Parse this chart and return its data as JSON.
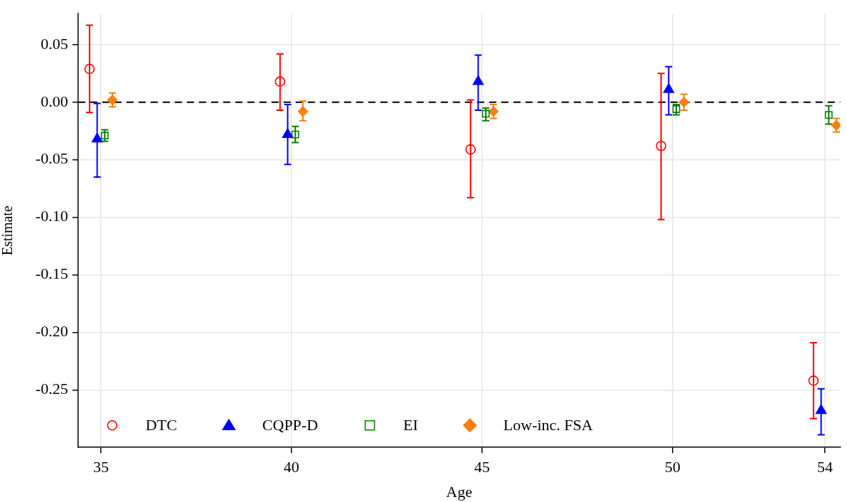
{
  "chart_data": {
    "type": "scatter",
    "xlabel": "Age",
    "ylabel": "Estimate",
    "xlim": [
      34.4,
      54.4
    ],
    "xticks": [
      35,
      40,
      45,
      50,
      54
    ],
    "ylim": [
      -0.3,
      0.077
    ],
    "yticks": [
      {
        "value": -0.25,
        "label": "-0.25"
      },
      {
        "value": -0.2,
        "label": "-0.20"
      },
      {
        "value": -0.15,
        "label": "-0.15"
      },
      {
        "value": -0.1,
        "label": "-0.10"
      },
      {
        "value": -0.05,
        "label": "-0.05"
      },
      {
        "value": 0,
        "label": "0.00"
      },
      {
        "value": 0.05,
        "label": "0.05"
      }
    ],
    "grid": true,
    "legend": "bottom left",
    "ref_lines": [
      {
        "axis": "y",
        "value": 0,
        "color": "#000000",
        "line_style": "dashed"
      }
    ],
    "series": [
      {
        "name": "DTC",
        "color": "#ff0000",
        "marker": "circle",
        "x": [
          34.7,
          39.7,
          44.7,
          49.7,
          53.7
        ],
        "values": [
          0.029,
          0.018,
          -0.041,
          -0.038,
          -0.242
        ],
        "errors": [
          [
            -0.009,
            0.067
          ],
          [
            -0.007,
            0.042
          ],
          [
            -0.083,
            0.002
          ],
          [
            -0.102,
            0.025
          ],
          [
            -0.275,
            -0.209
          ]
        ]
      },
      {
        "name": "CQPP-D",
        "color": "#0000ff",
        "marker": "triangle",
        "x": [
          34.9,
          39.9,
          44.9,
          49.9,
          53.9
        ],
        "values": [
          -0.032,
          -0.028,
          0.018,
          0.011,
          -0.268
        ],
        "errors": [
          [
            -0.065,
            -0.001
          ],
          [
            -0.054,
            -0.002
          ],
          [
            -0.007,
            0.041
          ],
          [
            -0.011,
            0.031
          ],
          [
            -0.289,
            -0.249
          ]
        ]
      },
      {
        "name": "EI",
        "color": "#008000",
        "marker": "square",
        "x": [
          35.1,
          40.1,
          45.1,
          50.1,
          54.1
        ],
        "values": [
          -0.029,
          -0.028,
          -0.01,
          -0.006,
          -0.011
        ],
        "errors": [
          [
            -0.034,
            -0.024
          ],
          [
            -0.035,
            -0.021
          ],
          [
            -0.016,
            -0.005
          ],
          [
            -0.011,
            -0.002
          ],
          [
            -0.019,
            -0.003
          ]
        ]
      },
      {
        "name": "Low-inc. FSA",
        "color": "#ff7f0e",
        "marker": "diamond",
        "x": [
          35.3,
          40.3,
          45.3,
          50.3,
          54.3
        ],
        "values": [
          0.002,
          -0.008,
          -0.008,
          0.0,
          -0.02
        ],
        "errors": [
          [
            -0.004,
            0.008
          ],
          [
            -0.016,
            0.001
          ],
          [
            -0.014,
            -0.002
          ],
          [
            -0.007,
            0.007
          ],
          [
            -0.026,
            -0.014
          ]
        ]
      }
    ]
  }
}
